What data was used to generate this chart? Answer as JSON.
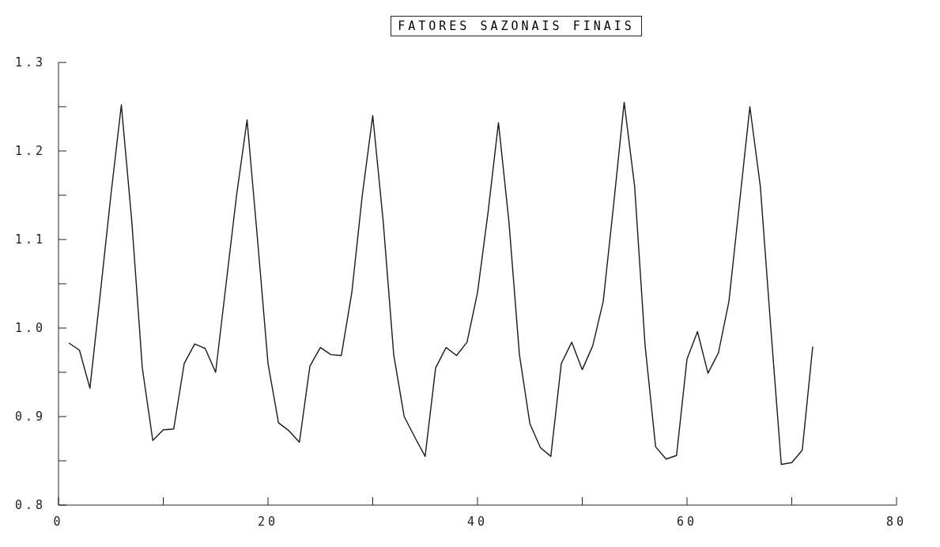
{
  "chart_data": {
    "type": "line",
    "title": "FATORES SAZONAIS FINAIS",
    "x": [
      1,
      2,
      3,
      4,
      5,
      6,
      7,
      8,
      9,
      10,
      11,
      12,
      13,
      14,
      15,
      16,
      17,
      18,
      19,
      20,
      21,
      22,
      23,
      24,
      25,
      26,
      27,
      28,
      29,
      30,
      31,
      32,
      33,
      34,
      35,
      36,
      37,
      38,
      39,
      40,
      41,
      42,
      43,
      44,
      45,
      46,
      47,
      48,
      49,
      50,
      51,
      52,
      53,
      54,
      55,
      56,
      57,
      58,
      59,
      60,
      61,
      62,
      63,
      64,
      65,
      66,
      67,
      68,
      69,
      70,
      71,
      72
    ],
    "series": [
      {
        "color": "#1a1a1a",
        "values": [
          0.983,
          0.975,
          0.932,
          1.04,
          1.15,
          1.252,
          1.12,
          0.955,
          0.873,
          0.885,
          0.886,
          0.96,
          0.982,
          0.977,
          0.95,
          1.05,
          1.15,
          1.235,
          1.1,
          0.96,
          0.893,
          0.884,
          0.871,
          0.957,
          0.978,
          0.97,
          0.969,
          1.04,
          1.15,
          1.24,
          1.12,
          0.97,
          0.9,
          0.877,
          0.855,
          0.955,
          0.978,
          0.969,
          0.984,
          1.04,
          1.13,
          1.232,
          1.12,
          0.97,
          0.892,
          0.865,
          0.855,
          0.96,
          0.984,
          0.953,
          0.98,
          1.03,
          1.14,
          1.255,
          1.16,
          0.98,
          0.866,
          0.852,
          0.856,
          0.965,
          0.996,
          0.949,
          0.972,
          1.03,
          1.14,
          1.25,
          1.16,
          1.0,
          0.846,
          0.848,
          0.862,
          0.979
        ]
      }
    ],
    "xlim": [
      0,
      80
    ],
    "xticks": [
      0,
      {
        "value": 10,
        "label": null
      },
      20,
      {
        "value": 30,
        "label": null
      },
      40,
      {
        "value": 50,
        "label": null
      },
      60,
      {
        "value": 70,
        "label": null
      },
      80
    ],
    "ylim": [
      0.8,
      1.3
    ],
    "yticks": [
      {
        "value": 0.8,
        "label": "0.8"
      },
      {
        "value": 0.85,
        "label": null
      },
      {
        "value": 0.9,
        "label": "0.9"
      },
      {
        "value": 0.95,
        "label": null
      },
      {
        "value": 1.0,
        "label": "1.0"
      },
      {
        "value": 1.05,
        "label": null
      },
      {
        "value": 1.1,
        "label": "1.1"
      },
      {
        "value": 1.15,
        "label": null
      },
      {
        "value": 1.2,
        "label": "1.2"
      },
      {
        "value": 1.25,
        "label": null
      },
      {
        "value": 1.3,
        "label": "1.3"
      }
    ],
    "grid": false,
    "legend": false,
    "marker": "none",
    "line_style": "solid"
  }
}
